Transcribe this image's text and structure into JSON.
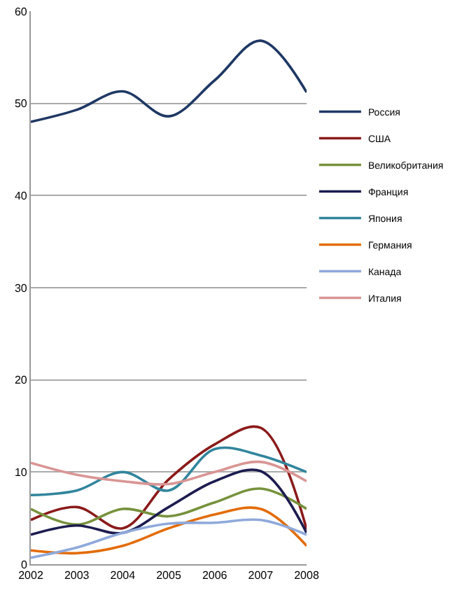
{
  "chart_data": {
    "type": "line",
    "categories": [
      "2002",
      "2003",
      "2004",
      "2005",
      "2006",
      "2007",
      "2008"
    ],
    "ylim": [
      0,
      60
    ],
    "yticks": [
      0,
      10,
      20,
      30,
      40,
      50,
      60
    ],
    "grid": "y",
    "legend": "right",
    "marker": "none",
    "line_style": "solid",
    "series": [
      {
        "name": "Россия",
        "color": "#1f3864",
        "values": [
          48,
          49.3,
          51.3,
          48.6,
          52.5,
          56.8,
          51.2
        ]
      },
      {
        "name": "США",
        "color": "#8b1a1a",
        "values": [
          4.8,
          6.2,
          3.9,
          9.2,
          13,
          14.8,
          3.8
        ]
      },
      {
        "name": "Великобритания",
        "color": "#76923c",
        "values": [
          6,
          4.3,
          6,
          5.2,
          6.7,
          8.2,
          6
        ]
      },
      {
        "name": "Франция",
        "color": "#1c1c50",
        "values": [
          3.2,
          4.2,
          3.4,
          6.2,
          9,
          10.1,
          3.4
        ]
      },
      {
        "name": "Япония",
        "color": "#31859c",
        "values": [
          7.5,
          8,
          10,
          8,
          12.5,
          11.8,
          10
        ]
      },
      {
        "name": "Германия",
        "color": "#e36c09",
        "values": [
          1.5,
          1.2,
          2,
          3.9,
          5.4,
          6,
          2
        ]
      },
      {
        "name": "Канада",
        "color": "#8ea9db",
        "values": [
          0.7,
          1.8,
          3.4,
          4.4,
          4.5,
          4.8,
          3.2
        ]
      },
      {
        "name": "Италия",
        "color": "#d99594",
        "values": [
          11,
          9.7,
          9,
          8.7,
          10,
          11.1,
          9
        ]
      }
    ]
  }
}
